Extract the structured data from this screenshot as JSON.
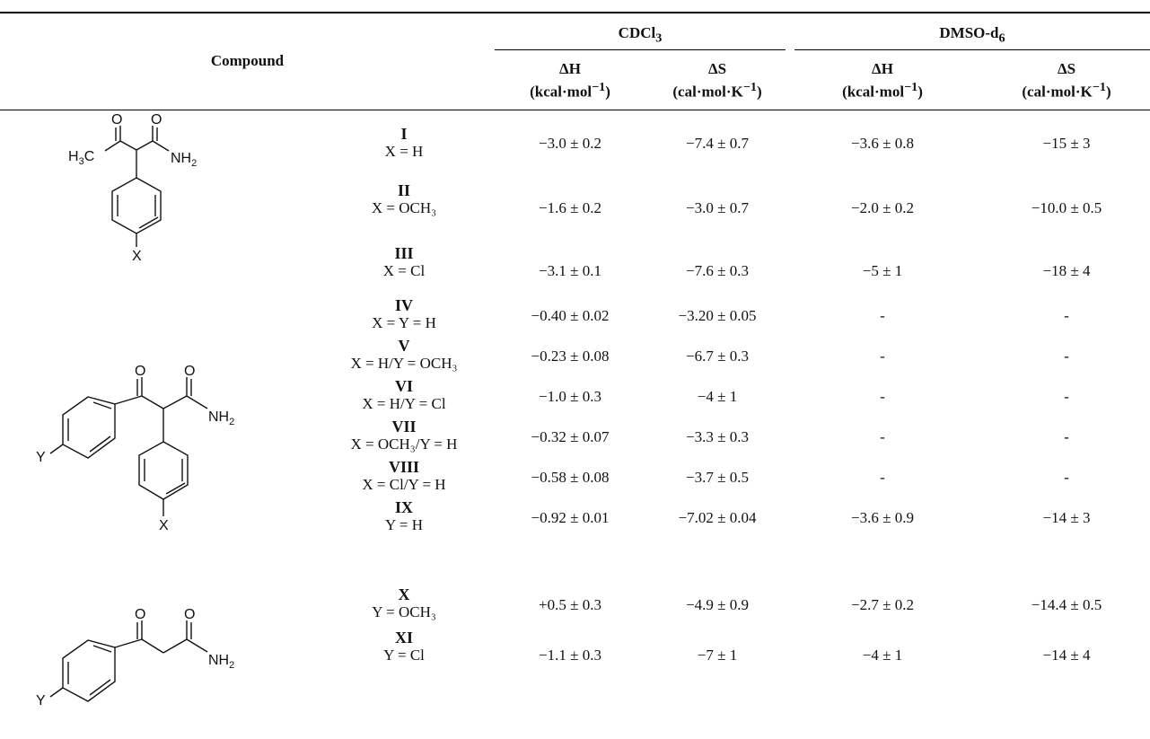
{
  "header": {
    "compound": "Compound",
    "cdcl3": "CDCl",
    "cdcl3_sub": "3",
    "dmso": "DMSO-d",
    "dmso_sub": "6",
    "dH": "ΔH",
    "dS": "ΔS",
    "unit_h_a": "(kcal·mol",
    "unit_h_sup": "−1",
    "unit_h_b": ")",
    "unit_s_a": "(cal·mol·K",
    "unit_s_sup": "−1",
    "unit_s_b": ")"
  },
  "structures": {
    "s1": {
      "o1": "O",
      "o2": "O",
      "ch3": "H",
      "ch3_sub": "3",
      "ch3_c": "C",
      "nh2": "NH",
      "nh2_sub": "2",
      "x": "X"
    },
    "s2": {
      "o1": "O",
      "o2": "O",
      "nh2": "NH",
      "nh2_sub": "2",
      "x": "X",
      "y": "Y"
    },
    "s3": {
      "o1": "O",
      "o2": "O",
      "nh2": "NH",
      "nh2_sub": "2",
      "y": "Y"
    }
  },
  "rows": [
    {
      "id": "I",
      "sub": "X = H",
      "c1": "−3.0 ± 0.2",
      "c2": "−7.4 ± 0.7",
      "c3": "−3.6 ± 0.8",
      "c4": "−15 ± 3"
    },
    {
      "id": "II",
      "sub": "X = OCH₃",
      "c1": "−1.6 ± 0.2",
      "c2": "−3.0 ± 0.7",
      "c3": "−2.0 ± 0.2",
      "c4": "−10.0 ± 0.5"
    },
    {
      "id": "III",
      "sub": "X = Cl",
      "c1": "−3.1 ± 0.1",
      "c2": "−7.6 ± 0.3",
      "c3": "−5 ± 1",
      "c4": "−18 ± 4"
    },
    {
      "id": "IV",
      "sub": "X = Y = H",
      "c1": "−0.40 ± 0.02",
      "c2": "−3.20 ± 0.05",
      "c3": "-",
      "c4": "-"
    },
    {
      "id": "V",
      "sub": "X = H/Y = OCH₃",
      "c1": "−0.23 ± 0.08",
      "c2": "−6.7 ± 0.3",
      "c3": "-",
      "c4": "-"
    },
    {
      "id": "VI",
      "sub": "X = H/Y = Cl",
      "c1": "−1.0 ± 0.3",
      "c2": "−4 ± 1",
      "c3": "-",
      "c4": "-"
    },
    {
      "id": "VII",
      "sub": "X = OCH₃/Y = H",
      "c1": "−0.32 ± 0.07",
      "c2": "−3.3 ± 0.3",
      "c3": "-",
      "c4": "-"
    },
    {
      "id": "VIII",
      "sub": "X = Cl/Y = H",
      "c1": "−0.58 ± 0.08",
      "c2": "−3.7 ± 0.5",
      "c3": "-",
      "c4": "-"
    },
    {
      "id": "IX",
      "sub": "Y = H",
      "c1": "−0.92 ± 0.01",
      "c2": "−7.02 ± 0.04",
      "c3": "−3.6 ± 0.9",
      "c4": "−14 ± 3"
    },
    {
      "id": "X",
      "sub": "Y = OCH₃",
      "c1": "+0.5 ± 0.3",
      "c2": "−4.9 ± 0.9",
      "c3": "−2.7 ± 0.2",
      "c4": "−14.4 ± 0.5"
    },
    {
      "id": "XI",
      "sub": "Y = Cl",
      "c1": "−1.1 ± 0.3",
      "c2": "−7 ± 1",
      "c3": "−4 ± 1",
      "c4": "−14 ± 4"
    }
  ]
}
